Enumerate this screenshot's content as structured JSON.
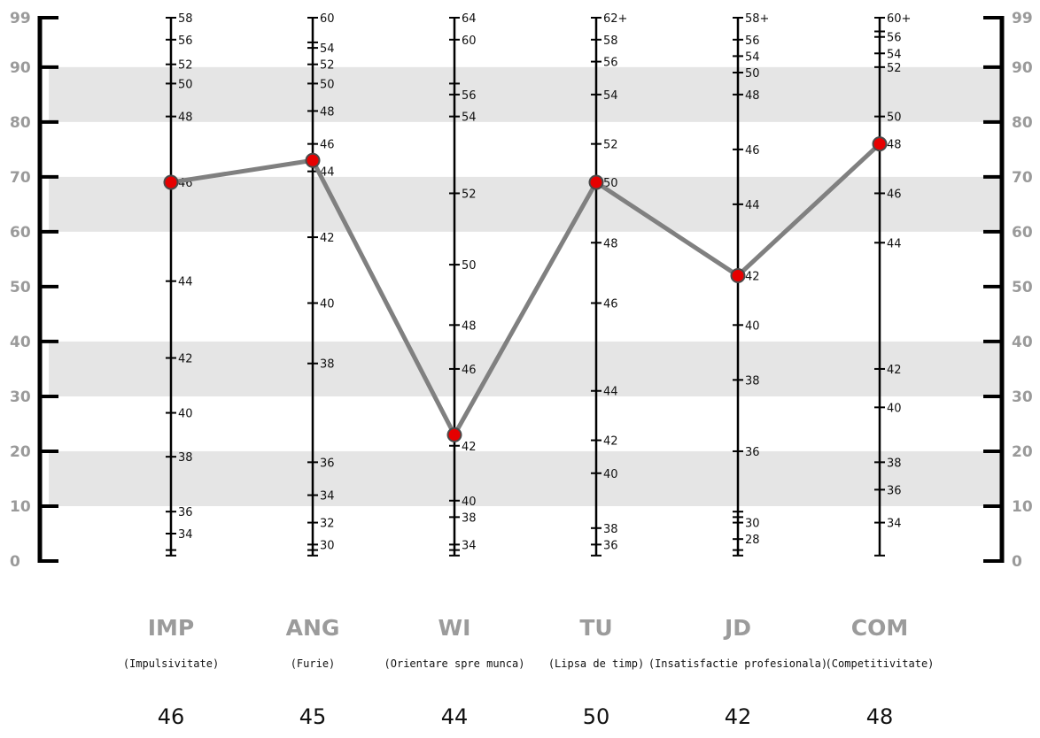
{
  "chart_data": {
    "type": "line",
    "y_scale": {
      "min": 0,
      "max": 99,
      "ticks": [
        "0",
        "10",
        "20",
        "30",
        "40",
        "50",
        "60",
        "70",
        "80",
        "90",
        "99"
      ],
      "shaded_bands": [
        [
          10,
          20
        ],
        [
          30,
          40
        ],
        [
          60,
          70
        ],
        [
          80,
          90
        ]
      ]
    },
    "categories": [
      {
        "code": "IMP",
        "label": "(Impulsivitate)",
        "score": "46",
        "percentile": 69,
        "ticks": [
          {
            "y": 99,
            "label": "58"
          },
          {
            "y": 95,
            "label": "56"
          },
          {
            "y": 90.5,
            "label": "52"
          },
          {
            "y": 87,
            "label": "50"
          },
          {
            "y": 81,
            "label": "48"
          },
          {
            "y": 69,
            "label": "46"
          },
          {
            "y": 51,
            "label": "44"
          },
          {
            "y": 37,
            "label": "42"
          },
          {
            "y": 27,
            "label": "40"
          },
          {
            "y": 19,
            "label": "38"
          },
          {
            "y": 9,
            "label": "36"
          },
          {
            "y": 5,
            "label": "34"
          },
          {
            "y": 2,
            "label": ""
          },
          {
            "y": 1,
            "label": ""
          }
        ]
      },
      {
        "code": "ANG",
        "label": "(Furie)",
        "score": "45",
        "percentile": 73,
        "ticks": [
          {
            "y": 99,
            "label": "60"
          },
          {
            "y": 94.5,
            "label": ""
          },
          {
            "y": 93.5,
            "label": "54"
          },
          {
            "y": 90.5,
            "label": "52"
          },
          {
            "y": 87,
            "label": "50"
          },
          {
            "y": 82,
            "label": "48"
          },
          {
            "y": 76,
            "label": "46"
          },
          {
            "y": 71,
            "label": "44"
          },
          {
            "y": 59,
            "label": "42"
          },
          {
            "y": 47,
            "label": "40"
          },
          {
            "y": 36,
            "label": "38"
          },
          {
            "y": 18,
            "label": "36"
          },
          {
            "y": 12,
            "label": "34"
          },
          {
            "y": 7,
            "label": "32"
          },
          {
            "y": 3,
            "label": "30"
          },
          {
            "y": 2,
            "label": ""
          },
          {
            "y": 1,
            "label": ""
          }
        ]
      },
      {
        "code": "WI",
        "label": "(Orientare spre munca)",
        "score": "44",
        "percentile": 23,
        "ticks": [
          {
            "y": 99,
            "label": "64"
          },
          {
            "y": 95,
            "label": "60"
          },
          {
            "y": 87,
            "label": ""
          },
          {
            "y": 85,
            "label": "56"
          },
          {
            "y": 81,
            "label": "54"
          },
          {
            "y": 67,
            "label": "52"
          },
          {
            "y": 54,
            "label": "50"
          },
          {
            "y": 43,
            "label": "48"
          },
          {
            "y": 35,
            "label": "46"
          },
          {
            "y": 21,
            "label": "42"
          },
          {
            "y": 11,
            "label": "40"
          },
          {
            "y": 8,
            "label": "38"
          },
          {
            "y": 3,
            "label": "34"
          },
          {
            "y": 2,
            "label": ""
          },
          {
            "y": 1,
            "label": ""
          }
        ]
      },
      {
        "code": "TU",
        "label": "(Lipsa de timp)",
        "score": "50",
        "percentile": 69,
        "ticks": [
          {
            "y": 99,
            "label": "62+"
          },
          {
            "y": 95,
            "label": "58"
          },
          {
            "y": 91,
            "label": "56"
          },
          {
            "y": 85,
            "label": "54"
          },
          {
            "y": 76,
            "label": "52"
          },
          {
            "y": 69,
            "label": "50"
          },
          {
            "y": 58,
            "label": "48"
          },
          {
            "y": 47,
            "label": "46"
          },
          {
            "y": 31,
            "label": "44"
          },
          {
            "y": 22,
            "label": "42"
          },
          {
            "y": 16,
            "label": "40"
          },
          {
            "y": 6,
            "label": "38"
          },
          {
            "y": 3,
            "label": "36"
          },
          {
            "y": 1,
            "label": ""
          }
        ]
      },
      {
        "code": "JD",
        "label": "(Insatisfactie profesionala)",
        "score": "42",
        "percentile": 52,
        "ticks": [
          {
            "y": 99,
            "label": "58+"
          },
          {
            "y": 95,
            "label": "56"
          },
          {
            "y": 92,
            "label": "54"
          },
          {
            "y": 89,
            "label": "50"
          },
          {
            "y": 85,
            "label": "48"
          },
          {
            "y": 75,
            "label": "46"
          },
          {
            "y": 65,
            "label": "44"
          },
          {
            "y": 52,
            "label": "42"
          },
          {
            "y": 43,
            "label": "40"
          },
          {
            "y": 33,
            "label": "38"
          },
          {
            "y": 20,
            "label": "36"
          },
          {
            "y": 9,
            "label": ""
          },
          {
            "y": 8,
            "label": ""
          },
          {
            "y": 7,
            "label": "30"
          },
          {
            "y": 4,
            "label": "28"
          },
          {
            "y": 2,
            "label": ""
          },
          {
            "y": 1,
            "label": ""
          }
        ]
      },
      {
        "code": "COM",
        "label": "(Competitivitate)",
        "score": "48",
        "percentile": 76,
        "ticks": [
          {
            "y": 99,
            "label": "60+"
          },
          {
            "y": 96.5,
            "label": ""
          },
          {
            "y": 95.5,
            "label": "56"
          },
          {
            "y": 92.5,
            "label": "54"
          },
          {
            "y": 90,
            "label": "52"
          },
          {
            "y": 81,
            "label": "50"
          },
          {
            "y": 76,
            "label": "48"
          },
          {
            "y": 67,
            "label": "46"
          },
          {
            "y": 58,
            "label": "44"
          },
          {
            "y": 35,
            "label": "42"
          },
          {
            "y": 28,
            "label": "40"
          },
          {
            "y": 18,
            "label": "38"
          },
          {
            "y": 13,
            "label": "36"
          },
          {
            "y": 7,
            "label": "34"
          },
          {
            "y": 1,
            "label": ""
          }
        ]
      }
    ],
    "colors": {
      "band": "#e5e5e5",
      "line": "#808080",
      "marker_fill": "#e60000",
      "marker_stroke": "#4a4a4a",
      "scale_label": "#9a9a9a",
      "code_label": "#9b9b9b"
    }
  }
}
